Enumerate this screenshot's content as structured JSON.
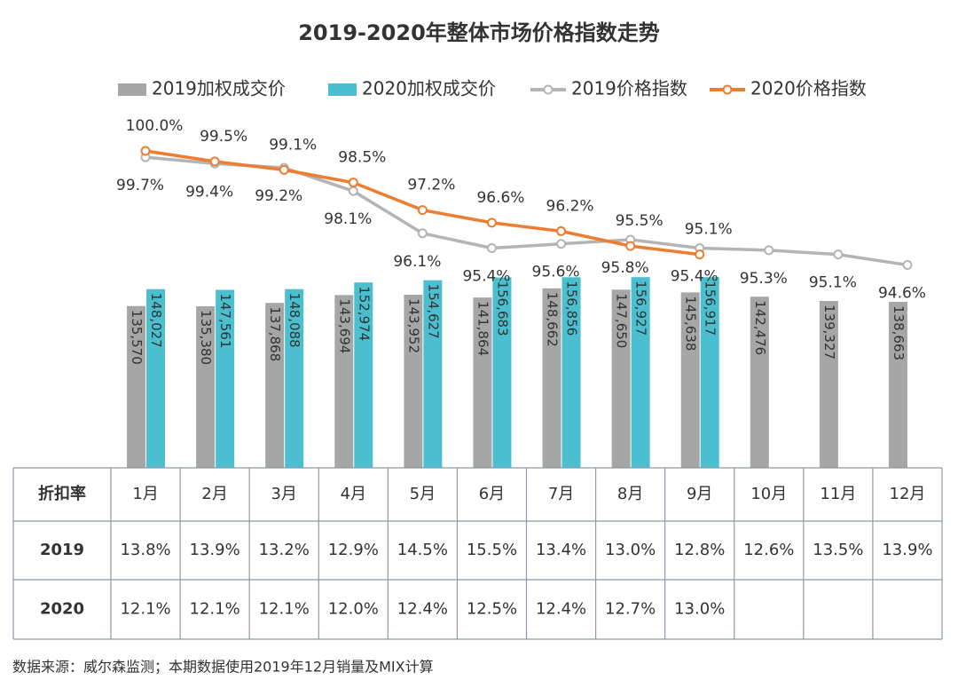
{
  "chart_data": {
    "type": "bar",
    "title": "2019-2020年整体市场价格指数走势",
    "categories": [
      "1月",
      "2月",
      "3月",
      "4月",
      "5月",
      "6月",
      "7月",
      "8月",
      "9月",
      "10月",
      "11月",
      "12月"
    ],
    "ylim": [
      16000,
      283000
    ],
    "y2lim": [
      85,
      102.1
    ],
    "series": [
      {
        "name": "2019加权成交价",
        "type": "bar",
        "color": "#a6a6a6",
        "values": [
          135570,
          135380,
          137868,
          143694,
          143952,
          141864,
          148662,
          147650,
          145638,
          142476,
          139327,
          138663
        ],
        "value_labels": [
          "135,570",
          "135,380",
          "137,868",
          "143,694",
          "143,952",
          "141,864",
          "148,662",
          "147,650",
          "145,638",
          "142,476",
          "139,327",
          "138,663"
        ]
      },
      {
        "name": "2020加权成交价",
        "type": "bar",
        "color": "#4bbfcf",
        "values": [
          148027,
          147561,
          148088,
          152974,
          154627,
          156683,
          156856,
          156927,
          156917,
          null,
          null,
          null
        ],
        "value_labels": [
          "148,027",
          "147,561",
          "148,088",
          "152,974",
          "154,627",
          "156,683",
          "156,856",
          "156,927",
          "156,917",
          null,
          null,
          null
        ]
      },
      {
        "name": "2019价格指数",
        "type": "line",
        "axis": "y2",
        "color": "#b4b4b4",
        "label_color": "#595959",
        "values": [
          99.7,
          99.4,
          99.2,
          98.1,
          96.1,
          95.4,
          95.6,
          95.8,
          95.4,
          95.3,
          95.1,
          94.6
        ],
        "value_labels": [
          "99.7%",
          "99.4%",
          "99.2%",
          "98.1%",
          "96.1%",
          "95.4%",
          "95.6%",
          "95.8%",
          "95.4%",
          "95.3%",
          "95.1%",
          "94.6%"
        ]
      },
      {
        "name": "2020价格指数",
        "type": "line",
        "axis": "y2",
        "color": "#ed7d31",
        "label_color": "#ed7d31",
        "values": [
          100.0,
          99.5,
          99.1,
          98.5,
          97.2,
          96.6,
          96.2,
          95.5,
          95.1,
          null,
          null,
          null
        ],
        "value_labels": [
          "100.0%",
          "99.5%",
          "99.1%",
          "98.5%",
          "97.2%",
          "96.6%",
          "96.2%",
          "95.5%",
          "95.1%",
          null,
          null,
          null
        ]
      }
    ],
    "table": {
      "corner": "折扣率",
      "rows": [
        {
          "label": "2019",
          "cells": [
            "13.8%",
            "13.9%",
            "13.2%",
            "12.9%",
            "14.5%",
            "15.5%",
            "13.4%",
            "13.0%",
            "12.8%",
            "12.6%",
            "13.5%",
            "13.9%"
          ]
        },
        {
          "label": "2020",
          "cells": [
            "12.1%",
            "12.1%",
            "12.1%",
            "12.0%",
            "12.4%",
            "12.5%",
            "12.4%",
            "12.7%",
            "13.0%"
          ]
        }
      ]
    },
    "source": "数据来源：威尔森监测；本期数据使用2019年12月销量及MIX计算"
  }
}
